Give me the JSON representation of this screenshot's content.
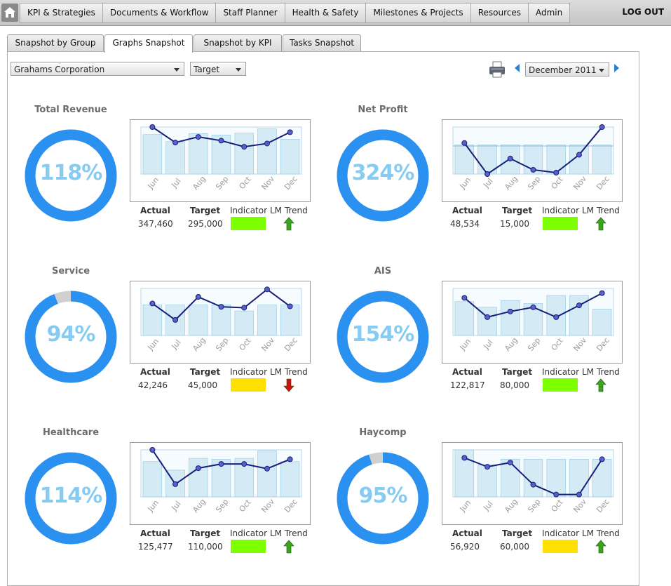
{
  "nav": {
    "items": [
      "KPI & Strategies",
      "Documents & Workflow",
      "Staff Planner",
      "Health & Safety",
      "Milestones & Projects",
      "Resources",
      "Admin"
    ],
    "logout": "LOG OUT"
  },
  "tabs": [
    "Snapshot by Group",
    "Graphs Snapshot",
    "Snapshot by KPI",
    "Tasks Snapshot"
  ],
  "active_tab": "Graphs Snapshot",
  "filters": {
    "company": "Grahams Corporation",
    "measure": "Target",
    "period": "December 2011"
  },
  "stat_headers": {
    "actual": "Actual",
    "target": "Target",
    "indicator": "Indicator",
    "trend": "LM Trend"
  },
  "colors": {
    "ring": "#2b91f0",
    "ring_rest": "#d0d0d0",
    "green": "#7dff00",
    "yellow": "#ffe000",
    "up": "#3aa51a",
    "down": "#d01010",
    "line": "#161e7a",
    "bar": "#d4ebf6"
  },
  "kpis": [
    {
      "title": "Total Revenue",
      "percent_label": "118%",
      "percent": 118,
      "actual": "347,460",
      "target": "295,000",
      "indicator": "green",
      "trend": "up",
      "chart_data": {
        "type": "bar+line",
        "categories": [
          "Jun",
          "Jul",
          "Aug",
          "Sep",
          "Oct",
          "Nov",
          "Dec"
        ],
        "bars": [
          0.84,
          0.69,
          0.86,
          0.83,
          0.87,
          0.96,
          0.74
        ],
        "line": [
          1.0,
          0.67,
          0.79,
          0.71,
          0.58,
          0.65,
          0.89
        ]
      }
    },
    {
      "title": "Net Profit",
      "percent_label": "324%",
      "percent": 324,
      "actual": "48,534",
      "target": "15,000",
      "indicator": "green",
      "trend": "up",
      "chart_data": {
        "type": "bar+line",
        "categories": [
          "Jun",
          "Jul",
          "Aug",
          "Sep",
          "Oct",
          "Nov",
          "Dec"
        ],
        "bars": [
          0.62,
          0.62,
          0.62,
          0.62,
          0.62,
          0.62,
          0.62
        ],
        "line": [
          0.66,
          0.0,
          0.33,
          0.09,
          0.03,
          0.41,
          1.0
        ]
      }
    },
    {
      "title": "Service",
      "percent_label": "94%",
      "percent": 94,
      "actual": "42,246",
      "target": "45,000",
      "indicator": "yellow",
      "trend": "down",
      "chart_data": {
        "type": "bar+line",
        "categories": [
          "Jun",
          "Jul",
          "Aug",
          "Sep",
          "Oct",
          "Nov",
          "Dec"
        ],
        "bars": [
          0.65,
          0.65,
          0.65,
          0.65,
          0.52,
          0.65,
          0.65
        ],
        "line": [
          0.68,
          0.33,
          0.82,
          0.61,
          0.59,
          0.98,
          0.62
        ]
      }
    },
    {
      "title": "AIS",
      "percent_label": "154%",
      "percent": 154,
      "actual": "122,817",
      "target": "80,000",
      "indicator": "green",
      "trend": "up",
      "chart_data": {
        "type": "bar+line",
        "categories": [
          "Jun",
          "Jul",
          "Aug",
          "Sep",
          "Oct",
          "Nov",
          "Dec"
        ],
        "bars": [
          0.72,
          0.6,
          0.74,
          0.68,
          0.85,
          0.85,
          0.56
        ],
        "line": [
          0.8,
          0.39,
          0.51,
          0.6,
          0.39,
          0.64,
          0.9
        ]
      }
    },
    {
      "title": "Healthcare",
      "percent_label": "114%",
      "percent": 114,
      "actual": "125,477",
      "target": "110,000",
      "indicator": "green",
      "trend": "up",
      "chart_data": {
        "type": "bar+line",
        "categories": [
          "Jun",
          "Jul",
          "Aug",
          "Sep",
          "Oct",
          "Nov",
          "Dec"
        ],
        "bars": [
          0.75,
          0.57,
          0.82,
          0.8,
          0.82,
          0.98,
          0.75
        ],
        "line": [
          1.0,
          0.27,
          0.61,
          0.7,
          0.7,
          0.6,
          0.8
        ]
      }
    },
    {
      "title": "Haycomp",
      "percent_label": "95%",
      "percent": 95,
      "actual": "56,920",
      "target": "60,000",
      "indicator": "yellow",
      "trend": "up",
      "chart_data": {
        "type": "bar+line",
        "categories": [
          "Jun",
          "Jul",
          "Aug",
          "Sep",
          "Oct",
          "Nov",
          "Dec"
        ],
        "bars": [
          1.0,
          0.68,
          0.8,
          0.8,
          0.8,
          0.8,
          0.8
        ],
        "line": [
          0.83,
          0.64,
          0.73,
          0.26,
          0.05,
          0.05,
          0.8
        ]
      }
    }
  ]
}
